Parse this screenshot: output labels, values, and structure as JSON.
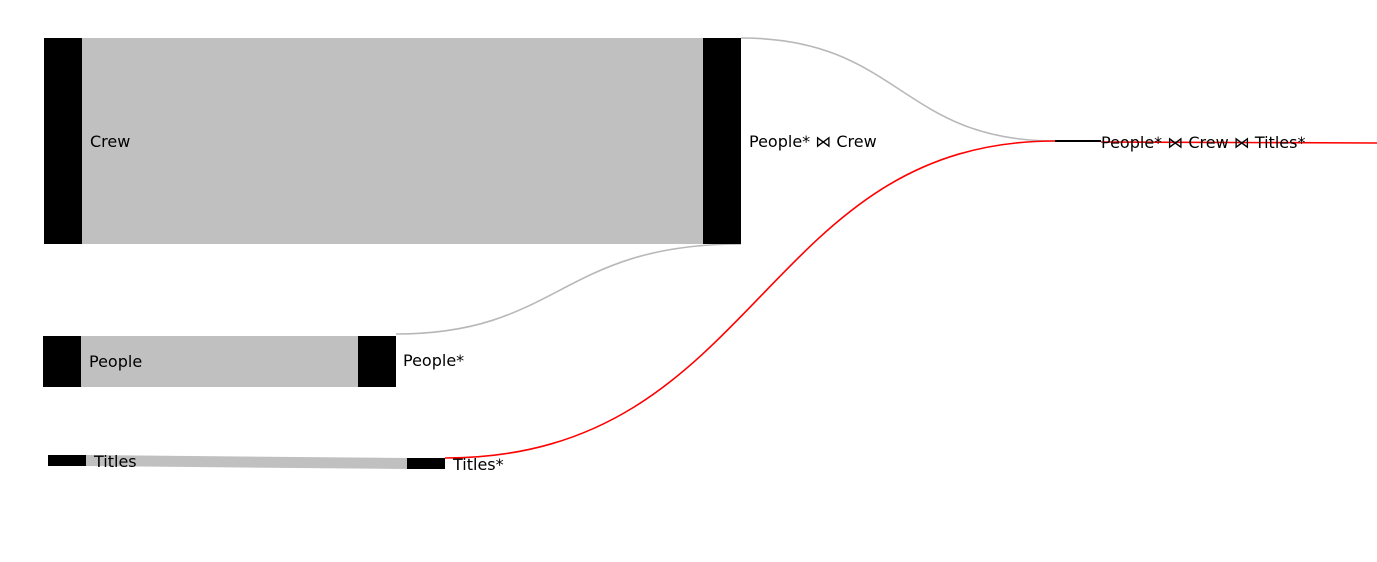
{
  "colors": {
    "node": "#000000",
    "flow": "#c0c0c0",
    "flow_line": "#b8b8b8",
    "highlight": "#ff0000",
    "background": "#ffffff"
  },
  "nodes": {
    "crew": "Crew",
    "people": "People",
    "titles": "Titles",
    "people_star": "People*",
    "titles_star": "Titles*",
    "people_crew": "People* ⋈ Crew",
    "people_crew_titles": "People* ⋈ Crew ⋈ Titles*"
  }
}
